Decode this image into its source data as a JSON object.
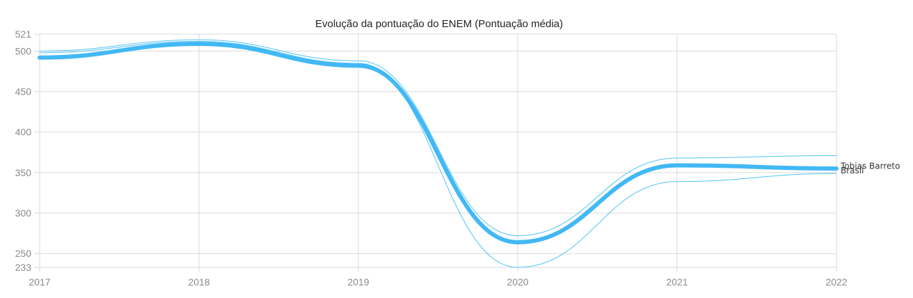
{
  "chart_data": {
    "type": "line",
    "title": "Evolução da pontuação do ENEM (Pontuação média)",
    "xlabel": "",
    "ylabel": "",
    "x": [
      "2017",
      "2018",
      "2019",
      "2020",
      "2021",
      "2022"
    ],
    "yticks": [
      233,
      250,
      300,
      350,
      400,
      450,
      500,
      521
    ],
    "ylim": [
      233,
      521
    ],
    "grid": true,
    "series": [
      {
        "name": "Tobias Barreto",
        "values": [
          500,
          514,
          488,
          272,
          368,
          371
        ],
        "color": "#4fc3f7",
        "stroke": "thin"
      },
      {
        "name": "Brasil",
        "values": [
          498,
          512,
          485,
          233,
          339,
          349
        ],
        "color": "#4fc3f7",
        "stroke": "thin"
      },
      {
        "values": [
          492,
          509,
          482,
          264,
          359,
          355
        ],
        "color": "#42b8f5",
        "stroke": "thick"
      }
    ]
  }
}
